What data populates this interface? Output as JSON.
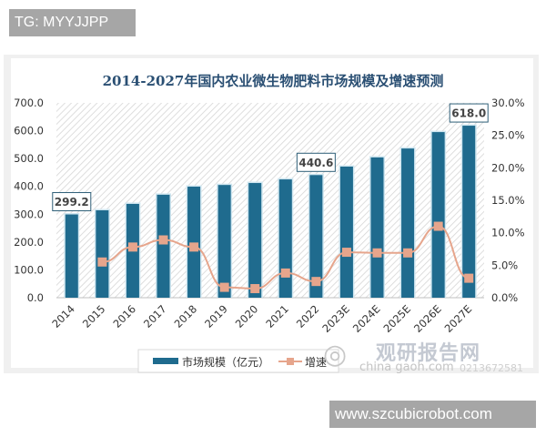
{
  "overlay": {
    "top_badge": "TG: MYYJJPP",
    "bottom_badge": "www.szcubicrobot.com"
  },
  "watermark": {
    "title": "观研报告网",
    "subtitle": "china  gaoh.com",
    "id_text": "0213672581"
  },
  "chart_data": {
    "type": "bar",
    "title": "2014-2027年国内农业微生物肥料市场规模及增速预测",
    "xlabel": "",
    "ylabel": "",
    "categories": [
      "2014",
      "2015",
      "2016",
      "2017",
      "2018",
      "2019",
      "2020",
      "2021",
      "2022",
      "2023E",
      "2024E",
      "2025E",
      "2026E",
      "2027E"
    ],
    "series": [
      {
        "name": "市场规模（亿元）",
        "type": "bar",
        "axis": "left",
        "color": "#1f6b8e",
        "values": [
          299.2,
          314,
          337,
          370,
          399,
          405,
          412,
          425,
          440.6,
          471,
          504,
          536,
          595,
          618.0
        ]
      },
      {
        "name": "增速",
        "type": "line",
        "axis": "right",
        "color": "#e6a58c",
        "values": [
          null,
          5.5,
          7.8,
          8.9,
          7.8,
          1.6,
          1.4,
          3.8,
          2.5,
          7.0,
          6.9,
          6.9,
          11.0,
          3.0
        ]
      }
    ],
    "ylim": [
      0,
      700
    ],
    "ylim_right": [
      0,
      30
    ],
    "left_ticks": [
      "0.0",
      "100.0",
      "200.0",
      "300.0",
      "400.0",
      "500.0",
      "600.0",
      "700.0"
    ],
    "right_ticks": [
      "0.0%",
      "5.0%",
      "10.0%",
      "15.0%",
      "20.0%",
      "25.0%",
      "30.0%"
    ],
    "annotations": [
      {
        "category": "2014",
        "label": "299.2"
      },
      {
        "category": "2022",
        "label": "440.6"
      },
      {
        "category": "2027E",
        "label": "618.0"
      }
    ],
    "legend": {
      "position": "bottom",
      "entries": [
        "市场规模（亿元）",
        "增速"
      ]
    },
    "grid": false
  }
}
